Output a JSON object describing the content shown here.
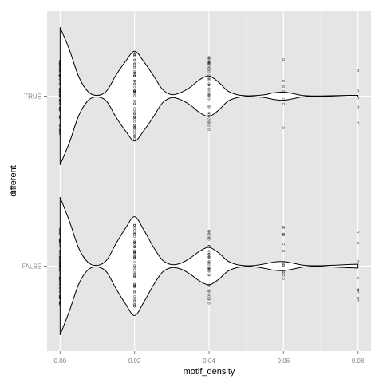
{
  "chart_data": {
    "type": "violin",
    "title": "",
    "xlabel": "motif_density",
    "ylabel": "different",
    "xlim": [
      -0.0035,
      0.0835
    ],
    "x_ticks": [
      0.0,
      0.02,
      0.04,
      0.06,
      0.08
    ],
    "x_tick_labels": [
      "0.00",
      "0.02",
      "0.04",
      "0.06",
      "0.08"
    ],
    "categories": [
      "TRUE",
      "FALSE"
    ],
    "orientation": "horizontal",
    "grid": true,
    "legend": "none",
    "colors": {
      "panel": "#e5e5e5",
      "grid_major": "#ffffff",
      "grid_minor": "#f2f2f2",
      "violin_fill": "#ffffff",
      "violin_stroke": "#000000",
      "points": "#000000",
      "tick_label": "#7f7f7f"
    },
    "series": [
      {
        "name": "TRUE",
        "density": [
          {
            "x": 0.0,
            "w": 0.92
          },
          {
            "x": 0.0025,
            "w": 0.62
          },
          {
            "x": 0.005,
            "w": 0.26
          },
          {
            "x": 0.0075,
            "w": 0.06
          },
          {
            "x": 0.01,
            "w": 0.01
          },
          {
            "x": 0.0125,
            "w": 0.07
          },
          {
            "x": 0.015,
            "w": 0.28
          },
          {
            "x": 0.0175,
            "w": 0.46
          },
          {
            "x": 0.02,
            "w": 0.6
          },
          {
            "x": 0.0225,
            "w": 0.46
          },
          {
            "x": 0.025,
            "w": 0.28
          },
          {
            "x": 0.0275,
            "w": 0.09
          },
          {
            "x": 0.03,
            "w": 0.02
          },
          {
            "x": 0.0325,
            "w": 0.05
          },
          {
            "x": 0.035,
            "w": 0.12
          },
          {
            "x": 0.0375,
            "w": 0.22
          },
          {
            "x": 0.04,
            "w": 0.27
          },
          {
            "x": 0.0425,
            "w": 0.19
          },
          {
            "x": 0.045,
            "w": 0.07
          },
          {
            "x": 0.0475,
            "w": 0.02
          },
          {
            "x": 0.05,
            "w": 0.005
          },
          {
            "x": 0.0525,
            "w": 0.008
          },
          {
            "x": 0.055,
            "w": 0.02
          },
          {
            "x": 0.0575,
            "w": 0.045
          },
          {
            "x": 0.06,
            "w": 0.055
          },
          {
            "x": 0.0625,
            "w": 0.035
          },
          {
            "x": 0.065,
            "w": 0.01
          },
          {
            "x": 0.0675,
            "w": 0.003
          },
          {
            "x": 0.07,
            "w": 0.003
          },
          {
            "x": 0.0725,
            "w": 0.005
          },
          {
            "x": 0.075,
            "w": 0.008
          },
          {
            "x": 0.0775,
            "w": 0.01
          },
          {
            "x": 0.08,
            "w": 0.011
          }
        ],
        "points": [
          {
            "x": 0.0,
            "n": 60,
            "spread": 0.52
          },
          {
            "x": 0.02,
            "n": 55,
            "spread": 0.58
          },
          {
            "x": 0.04,
            "n": 38,
            "spread": 0.52
          },
          {
            "x": 0.06,
            "n": 7,
            "spread": 0.52
          },
          {
            "x": 0.08,
            "n": 5,
            "spread": 0.45
          }
        ]
      },
      {
        "name": "FALSE",
        "density": [
          {
            "x": 0.0,
            "w": 0.92
          },
          {
            "x": 0.0025,
            "w": 0.6
          },
          {
            "x": 0.005,
            "w": 0.24
          },
          {
            "x": 0.0075,
            "w": 0.05
          },
          {
            "x": 0.01,
            "w": 0.01
          },
          {
            "x": 0.0125,
            "w": 0.08
          },
          {
            "x": 0.015,
            "w": 0.3
          },
          {
            "x": 0.0175,
            "w": 0.5
          },
          {
            "x": 0.02,
            "w": 0.66
          },
          {
            "x": 0.0225,
            "w": 0.48
          },
          {
            "x": 0.025,
            "w": 0.26
          },
          {
            "x": 0.0275,
            "w": 0.08
          },
          {
            "x": 0.03,
            "w": 0.02
          },
          {
            "x": 0.0325,
            "w": 0.04
          },
          {
            "x": 0.035,
            "w": 0.11
          },
          {
            "x": 0.0375,
            "w": 0.2
          },
          {
            "x": 0.04,
            "w": 0.25
          },
          {
            "x": 0.0425,
            "w": 0.18
          },
          {
            "x": 0.045,
            "w": 0.07
          },
          {
            "x": 0.0475,
            "w": 0.02
          },
          {
            "x": 0.05,
            "w": 0.005
          },
          {
            "x": 0.0525,
            "w": 0.01
          },
          {
            "x": 0.055,
            "w": 0.03
          },
          {
            "x": 0.0575,
            "w": 0.055
          },
          {
            "x": 0.06,
            "w": 0.06
          },
          {
            "x": 0.0625,
            "w": 0.04
          },
          {
            "x": 0.065,
            "w": 0.015
          },
          {
            "x": 0.0675,
            "w": 0.006
          },
          {
            "x": 0.07,
            "w": 0.006
          },
          {
            "x": 0.0725,
            "w": 0.01
          },
          {
            "x": 0.075,
            "w": 0.016
          },
          {
            "x": 0.0775,
            "w": 0.022
          },
          {
            "x": 0.08,
            "w": 0.025
          }
        ],
        "points": [
          {
            "x": 0.0,
            "n": 60,
            "spread": 0.52
          },
          {
            "x": 0.02,
            "n": 55,
            "spread": 0.58
          },
          {
            "x": 0.04,
            "n": 38,
            "spread": 0.52
          },
          {
            "x": 0.06,
            "n": 14,
            "spread": 0.52
          },
          {
            "x": 0.08,
            "n": 9,
            "spread": 0.46
          }
        ]
      }
    ]
  }
}
